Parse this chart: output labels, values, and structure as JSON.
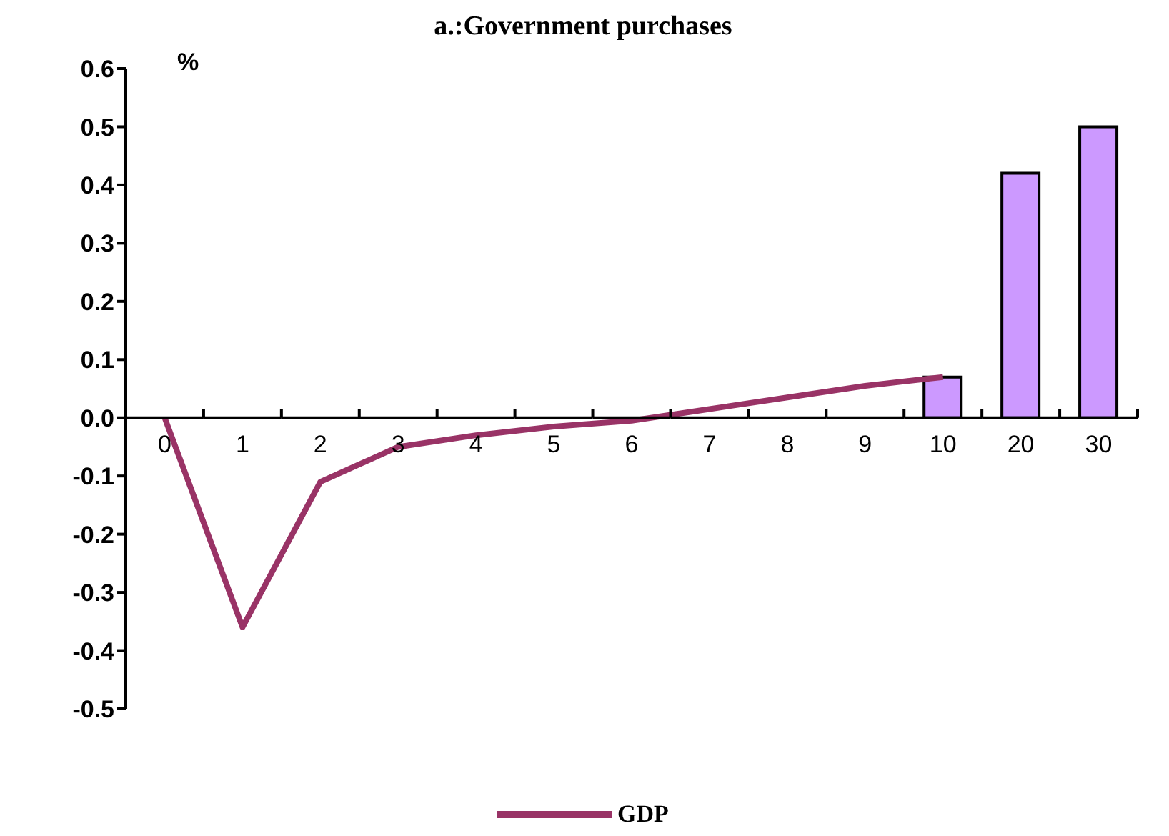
{
  "chart_data": {
    "type": "line",
    "title": "a.:Government purchases",
    "ylabel": "%",
    "categories": [
      "0",
      "1",
      "2",
      "3",
      "4",
      "5",
      "6",
      "7",
      "8",
      "9",
      "10",
      "20",
      "30"
    ],
    "series": [
      {
        "name": "GDP",
        "color": "#993366",
        "values": [
          0,
          -0.36,
          -0.11,
          -0.05,
          -0.03,
          -0.015,
          -0.005,
          0.015,
          0.035,
          0.055,
          0.07,
          null,
          null
        ]
      },
      {
        "type": "bar",
        "color": "#cc99ff",
        "values": [
          null,
          null,
          null,
          null,
          null,
          null,
          null,
          null,
          null,
          null,
          0.07,
          0.42,
          0.5
        ]
      }
    ],
    "ylim": [
      -0.5,
      0.6
    ],
    "yticks": [
      -0.5,
      -0.4,
      -0.3,
      -0.2,
      -0.1,
      {
        "value": 0,
        "label": "0.0"
      },
      0.1,
      0.2,
      0.3,
      0.4,
      0.5,
      0.6
    ],
    "grid": false,
    "legend": "bottom",
    "marker": "none"
  }
}
